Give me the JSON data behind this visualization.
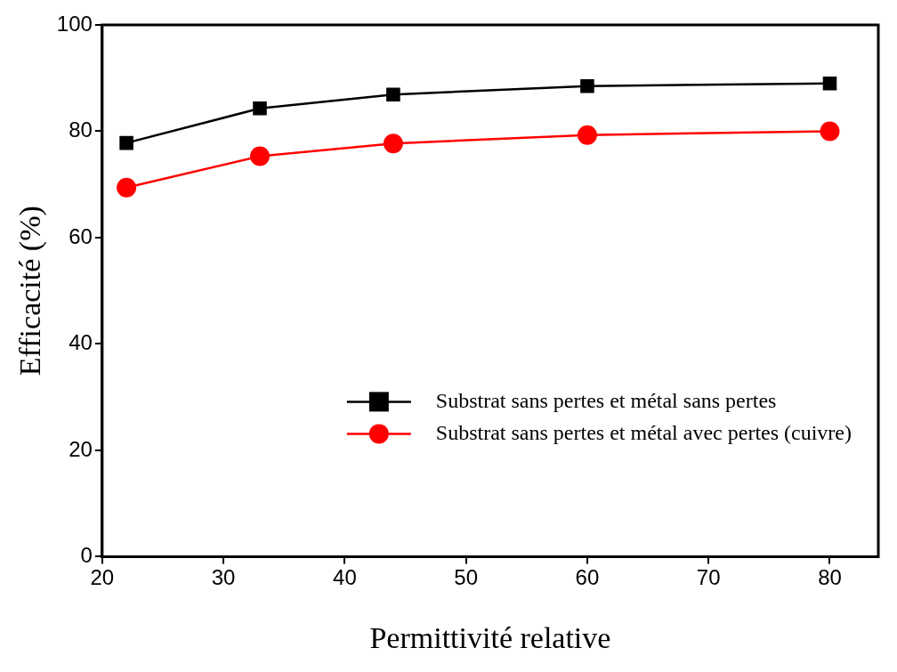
{
  "chart_data": {
    "type": "line",
    "xlabel": "Permittivité relative",
    "ylabel": "Efficacité (%)",
    "x": [
      22,
      33,
      44,
      60,
      80
    ],
    "series": [
      {
        "name": "Substrat sans pertes et métal sans pertes",
        "color": "#000000",
        "marker": "square",
        "values": [
          77.8,
          84.3,
          86.9,
          88.5,
          89.0
        ]
      },
      {
        "name": "Substrat sans pertes et métal avec pertes (cuivre)",
        "color": "#ff0000",
        "marker": "circle",
        "values": [
          69.4,
          75.3,
          77.7,
          79.3,
          80.0
        ]
      }
    ],
    "xlim": [
      20,
      84
    ],
    "xticks": [
      20,
      30,
      40,
      50,
      60,
      70,
      80
    ],
    "ylim": [
      0,
      100
    ],
    "yticks": [
      0,
      20,
      40,
      60,
      80,
      100
    ],
    "grid": false,
    "legend": "bottom right",
    "line_style": "solid"
  }
}
